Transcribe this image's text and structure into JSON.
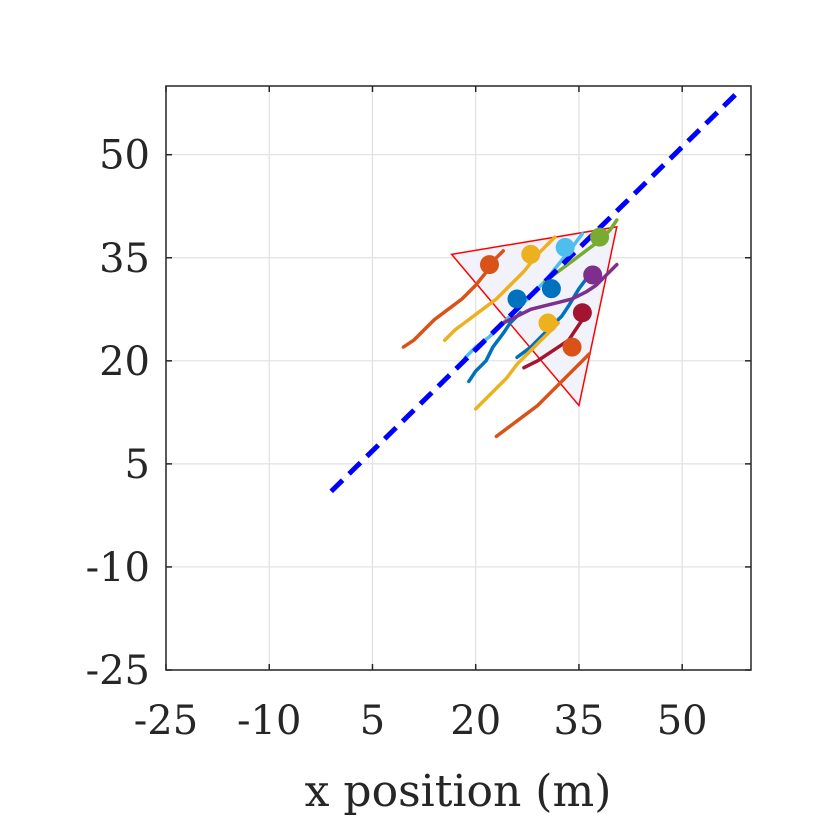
{
  "chart_data": {
    "type": "line",
    "title": "",
    "xlabel": "x position (m)",
    "ylabel": "",
    "xlim": [
      -25,
      60
    ],
    "ylim": [
      -25,
      60
    ],
    "xticks": [
      -25,
      -10,
      5,
      20,
      35,
      50
    ],
    "yticks": [
      -25,
      -10,
      5,
      20,
      35,
      50
    ],
    "xtick_labels": [
      "-25",
      "-10",
      "5",
      "20",
      "35",
      "50"
    ],
    "ytick_labels": [
      "-25",
      "-10",
      "5",
      "20",
      "35",
      "50"
    ],
    "grid": true,
    "reference_line": {
      "style": "dashed",
      "color": "#0000ff",
      "points": [
        [
          -1,
          1
        ],
        [
          58,
          59
        ]
      ]
    },
    "formation_region": {
      "shape": "triangle",
      "edge_color": "#ff0000",
      "fill_color": "#f2f2fa",
      "vertices": [
        [
          16.5,
          35.5
        ],
        [
          40.5,
          39.5
        ],
        [
          35,
          13.5
        ]
      ]
    },
    "agents": [
      {
        "color": "#d95319",
        "trajectory": [
          [
            9.5,
            22
          ],
          [
            11,
            23
          ],
          [
            12.5,
            24.5
          ],
          [
            14,
            26
          ],
          [
            16,
            27.5
          ],
          [
            18,
            29
          ],
          [
            20,
            31
          ],
          [
            22,
            33.5
          ],
          [
            23,
            35
          ],
          [
            24,
            36
          ]
        ]
      },
      {
        "color": "#edb120",
        "trajectory": [
          [
            15.5,
            23
          ],
          [
            17,
            24.5
          ],
          [
            19,
            26
          ],
          [
            21,
            27.5
          ],
          [
            23,
            29
          ],
          [
            25,
            31
          ],
          [
            27,
            33
          ],
          [
            29,
            35.5
          ],
          [
            30.5,
            37
          ],
          [
            31.5,
            38
          ]
        ]
      },
      {
        "color": "#4dbeee",
        "trajectory": [
          [
            18.5,
            20.5
          ],
          [
            20,
            22
          ],
          [
            22,
            23.5
          ],
          [
            24,
            25.5
          ],
          [
            26,
            27.5
          ],
          [
            28,
            29.5
          ],
          [
            30,
            31.5
          ],
          [
            32,
            34
          ],
          [
            34,
            36.5
          ],
          [
            35.5,
            38.5
          ]
        ]
      },
      {
        "color": "#0072bd",
        "trajectory": [
          [
            19,
            17
          ],
          [
            20,
            18.5
          ],
          [
            21.5,
            20
          ],
          [
            22.5,
            22
          ],
          [
            24,
            24
          ],
          [
            25,
            25.5
          ],
          [
            26.5,
            27
          ]
        ]
      },
      {
        "color": "#0072bd",
        "trajectory": [
          [
            26,
            20.5
          ],
          [
            28,
            22
          ],
          [
            29.5,
            23.5
          ],
          [
            31,
            25
          ],
          [
            32.5,
            26.5
          ],
          [
            33.5,
            28
          ],
          [
            35,
            30.5
          ],
          [
            36.5,
            32.5
          ]
        ]
      },
      {
        "color": "#77ac30",
        "trajectory": [
          [
            30,
            31.5
          ],
          [
            32,
            33
          ],
          [
            34,
            34.5
          ],
          [
            36,
            36
          ],
          [
            38,
            37.5
          ],
          [
            39.5,
            39
          ],
          [
            40.5,
            40.5
          ]
        ]
      },
      {
        "color": "#7e2f8e",
        "trajectory": [
          [
            24,
            25.5
          ],
          [
            26,
            26.5
          ],
          [
            28,
            27.5
          ],
          [
            30,
            28
          ],
          [
            32,
            28.5
          ],
          [
            34,
            29
          ],
          [
            36,
            30
          ],
          [
            37.5,
            31
          ],
          [
            39,
            32.5
          ],
          [
            40.5,
            34
          ]
        ]
      },
      {
        "color": "#edb120",
        "trajectory": [
          [
            20,
            13
          ],
          [
            21.5,
            14.5
          ],
          [
            23,
            16
          ],
          [
            24.5,
            17.5
          ],
          [
            26,
            19.5
          ],
          [
            27.5,
            21
          ],
          [
            29,
            22.5
          ],
          [
            30.5,
            24
          ],
          [
            32,
            25.5
          ]
        ]
      },
      {
        "color": "#a2142f",
        "trajectory": [
          [
            27,
            19
          ],
          [
            29,
            20
          ],
          [
            30.5,
            21
          ],
          [
            32,
            22
          ],
          [
            33.5,
            23
          ],
          [
            34.5,
            24.5
          ],
          [
            35.5,
            26
          ]
        ]
      },
      {
        "color": "#d95319",
        "trajectory": [
          [
            23,
            9
          ],
          [
            25,
            10.5
          ],
          [
            27,
            12
          ],
          [
            29,
            13.5
          ],
          [
            30.5,
            15
          ],
          [
            32,
            16.5
          ],
          [
            33.5,
            18
          ],
          [
            35,
            19.5
          ],
          [
            36.5,
            21
          ]
        ]
      }
    ],
    "agent_positions": [
      {
        "color": "#d95319",
        "x": 22,
        "y": 34
      },
      {
        "color": "#edb120",
        "x": 28,
        "y": 35.5
      },
      {
        "color": "#4dbeee",
        "x": 33,
        "y": 36.5
      },
      {
        "color": "#77ac30",
        "x": 38,
        "y": 38
      },
      {
        "color": "#0072bd",
        "x": 26,
        "y": 29
      },
      {
        "color": "#0072bd",
        "x": 31,
        "y": 30.5
      },
      {
        "color": "#7e2f8e",
        "x": 37,
        "y": 32.5
      },
      {
        "color": "#edb120",
        "x": 30.5,
        "y": 25.5
      },
      {
        "color": "#a2142f",
        "x": 35.5,
        "y": 27
      },
      {
        "color": "#d95319",
        "x": 34,
        "y": 22
      }
    ]
  }
}
